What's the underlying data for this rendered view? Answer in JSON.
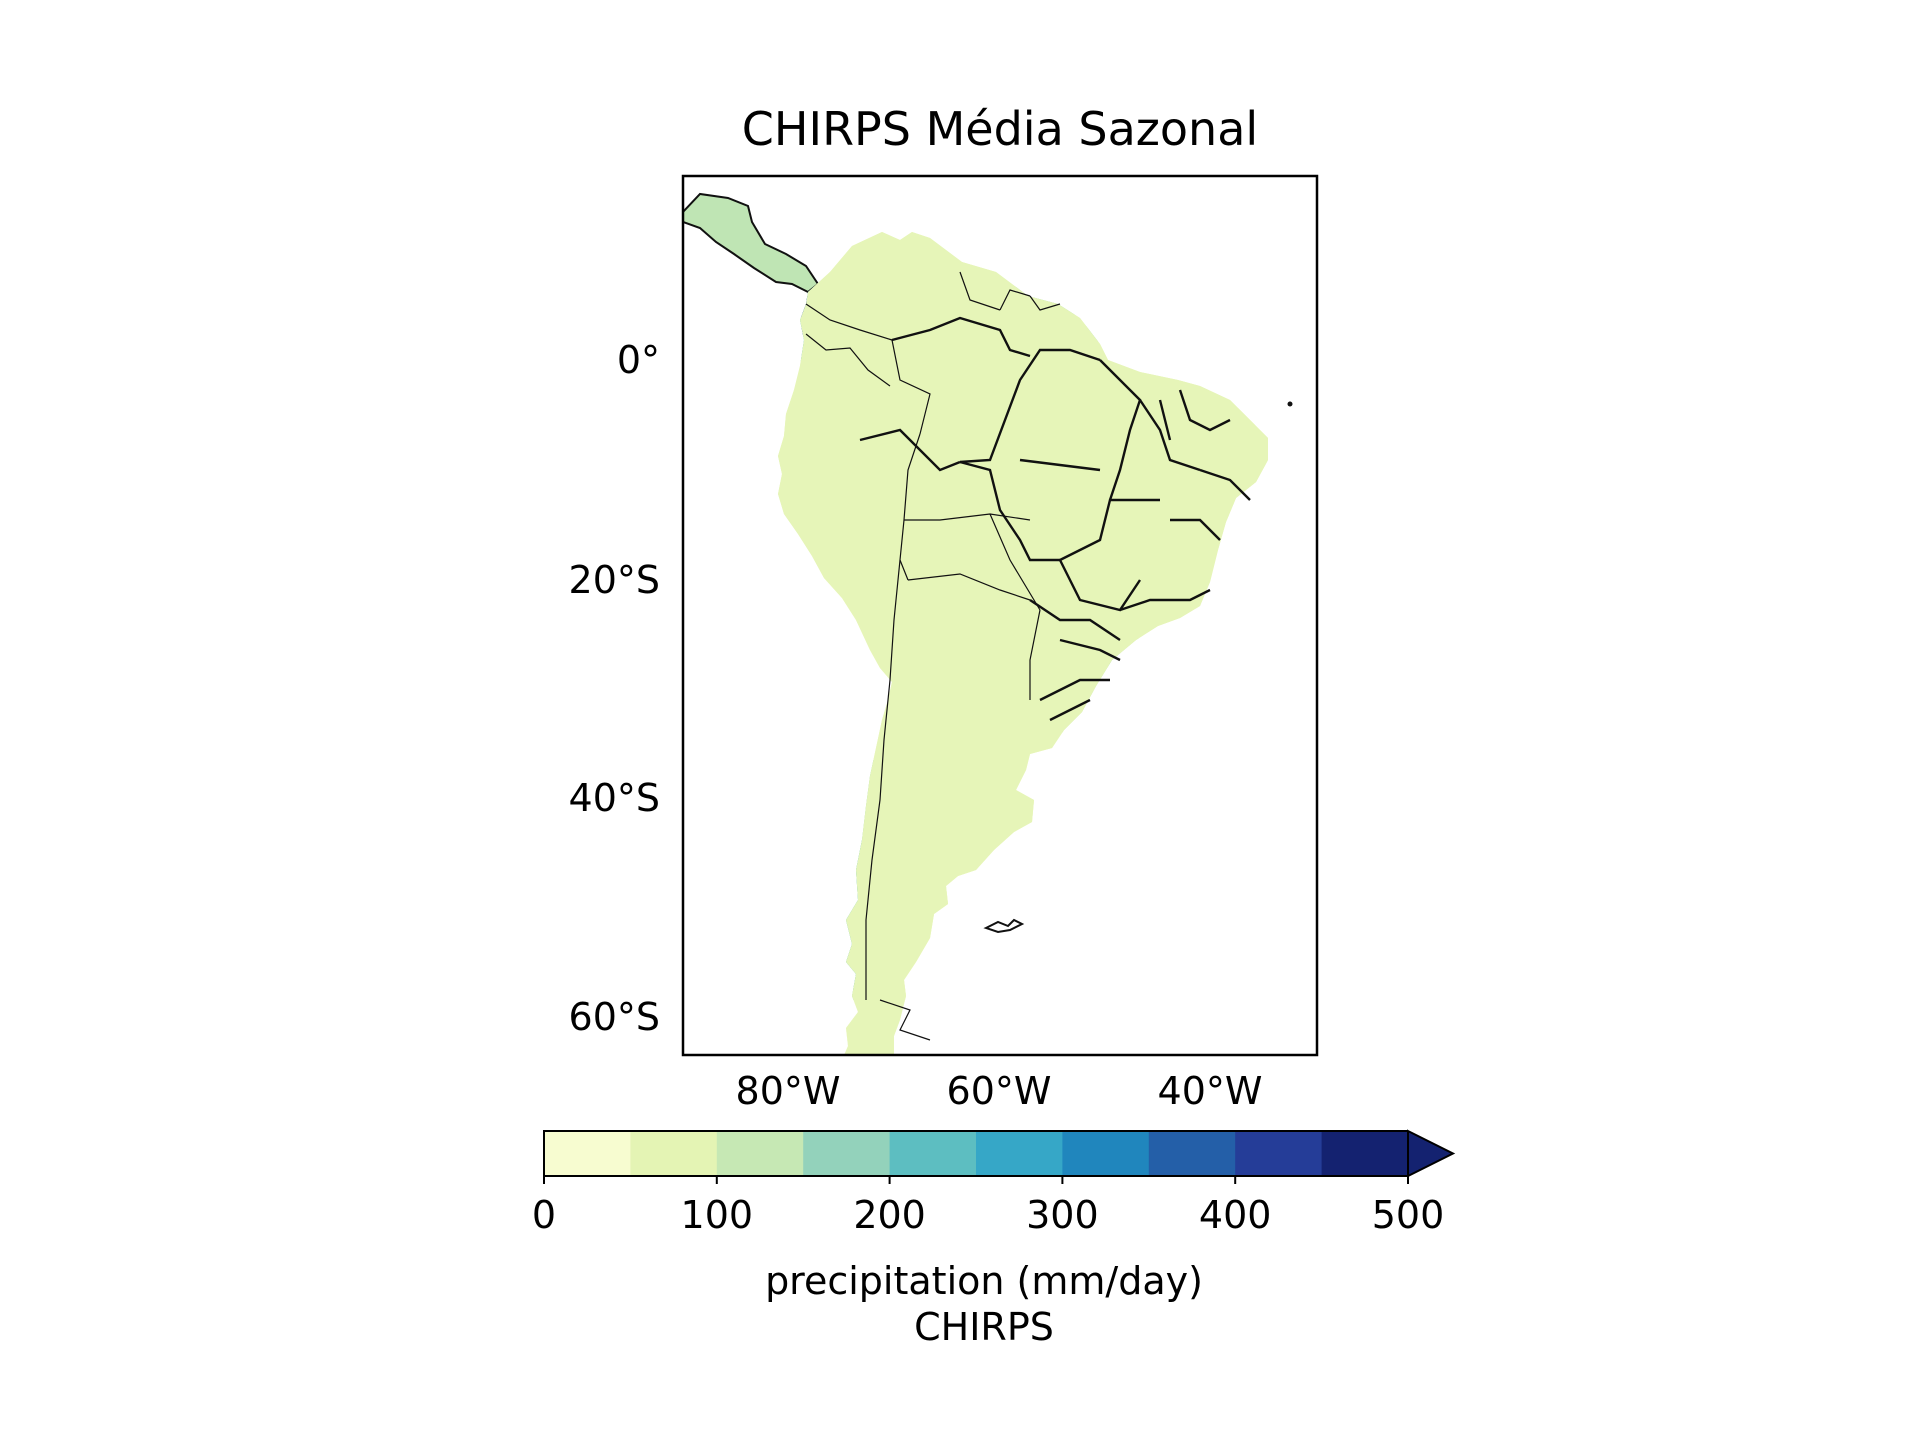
{
  "map": {
    "title": "CHIRPS Média Sazonal",
    "lat_labels": [
      "0°",
      "20°S",
      "40°S",
      "60°S"
    ],
    "lat_values": [
      0,
      -20,
      -40,
      -60
    ],
    "lon_labels": [
      "80°W",
      "60°W",
      "40°W"
    ],
    "lon_values": [
      -80,
      -60,
      -40
    ],
    "extent": {
      "lon": [
        -90,
        -30
      ],
      "lat": [
        -63,
        16
      ]
    },
    "region": "South America",
    "variable": "precipitation",
    "colormap": "YlGnBu",
    "boundaries": [
      "country borders (thin)",
      "Brazilian state borders (thick)"
    ]
  },
  "colorbar": {
    "tick_labels": [
      "0",
      "100",
      "200",
      "300",
      "400",
      "500"
    ],
    "tick_values": [
      0,
      100,
      200,
      300,
      400,
      500
    ],
    "levels": [
      0,
      50,
      100,
      150,
      200,
      250,
      300,
      350,
      400,
      450,
      500
    ],
    "colors": [
      "#f7fcd0",
      "#e4f4b4",
      "#c6e8b4",
      "#93d2bb",
      "#5dbec1",
      "#36a7c7",
      "#2086bd",
      "#245fa8",
      "#253d98",
      "#142270"
    ],
    "extend": "max",
    "label": "precipitation (mm/day)",
    "sublabel": "CHIRPS"
  }
}
